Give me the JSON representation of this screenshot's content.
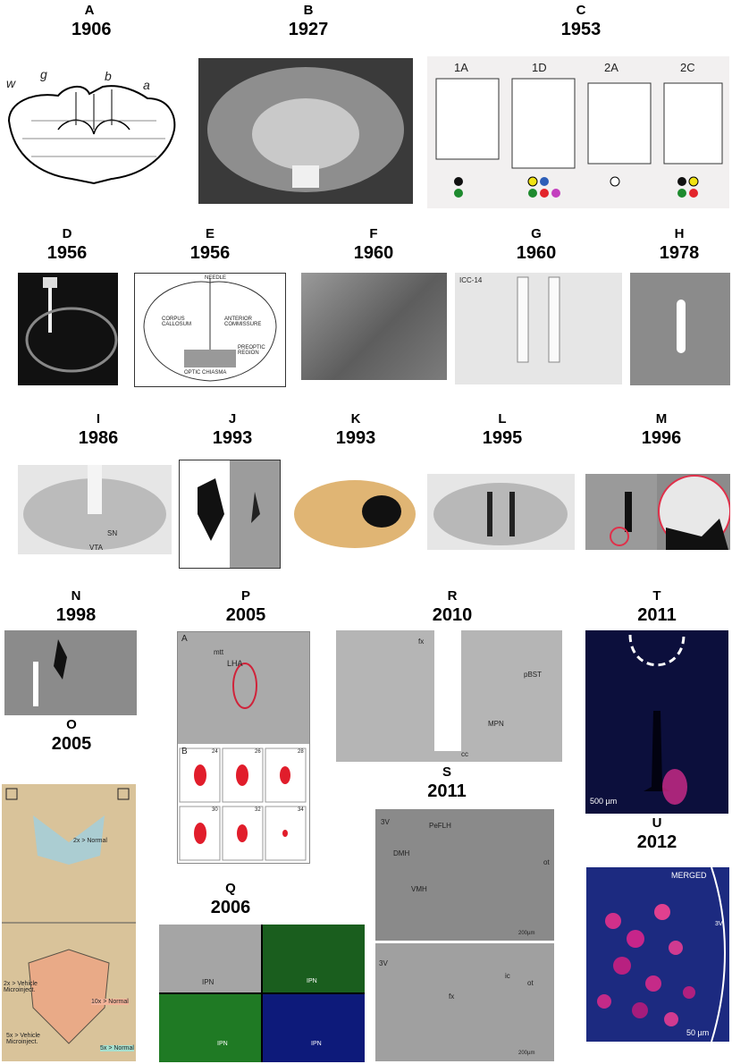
{
  "panels": {
    "A": {
      "letter": "A",
      "year": "1906",
      "annotations": [
        "w",
        "g",
        "b",
        "a"
      ]
    },
    "B": {
      "letter": "B",
      "year": "1927"
    },
    "C": {
      "letter": "C",
      "year": "1953",
      "sub_labels": [
        "1A",
        "1D",
        "2A",
        "2C"
      ]
    },
    "D": {
      "letter": "D",
      "year": "1956"
    },
    "E": {
      "letter": "E",
      "year": "1956",
      "annotations": [
        "NEEDLE",
        "CORPUS CALLOSUM",
        "ANTERIOR COMMISSURE",
        "PREOPTIC REGION",
        "OPTIC CHIASMA"
      ]
    },
    "F": {
      "letter": "F",
      "year": "1960"
    },
    "G": {
      "letter": "G",
      "year": "1960",
      "annotations": [
        "ICC-14"
      ]
    },
    "H": {
      "letter": "H",
      "year": "1978"
    },
    "I": {
      "letter": "I",
      "year": "1986",
      "annotations": [
        "SN",
        "VTA"
      ]
    },
    "J": {
      "letter": "J",
      "year": "1993"
    },
    "K": {
      "letter": "K",
      "year": "1993"
    },
    "L": {
      "letter": "L",
      "year": "1995"
    },
    "M": {
      "letter": "M",
      "year": "1996"
    },
    "N": {
      "letter": "N",
      "year": "1998"
    },
    "O": {
      "letter": "O",
      "year": "2005",
      "annotations": [
        "2x > Normal",
        "2x > Vehicle Microinject.",
        "10x > Normal",
        "5x > Vehicle Microinject.",
        "5x > Normal"
      ]
    },
    "P": {
      "letter": "P",
      "year": "2005",
      "annotations": [
        "A",
        "mtt",
        "LHA",
        "B"
      ],
      "section_numbers": [
        "24",
        "26",
        "28",
        "30",
        "32",
        "34"
      ]
    },
    "Q": {
      "letter": "Q",
      "year": "2006",
      "annotations": [
        "IPN",
        "IPN",
        "IPN",
        "IPN"
      ]
    },
    "R": {
      "letter": "R",
      "year": "2010",
      "annotations": [
        "fx",
        "pBST",
        "MPN",
        "cc"
      ]
    },
    "S": {
      "letter": "S",
      "year": "2011",
      "annotations": [
        "3V",
        "PeFLH",
        "DMH",
        "VMH",
        "ot",
        "200µm",
        "3V",
        "fx",
        "ic",
        "ot",
        "200µm"
      ]
    },
    "T": {
      "letter": "T",
      "year": "2011",
      "scale": "500 µm"
    },
    "U": {
      "letter": "U",
      "year": "2012",
      "annotations": [
        "MERGED",
        "3V"
      ],
      "scale": "50 µm"
    }
  }
}
